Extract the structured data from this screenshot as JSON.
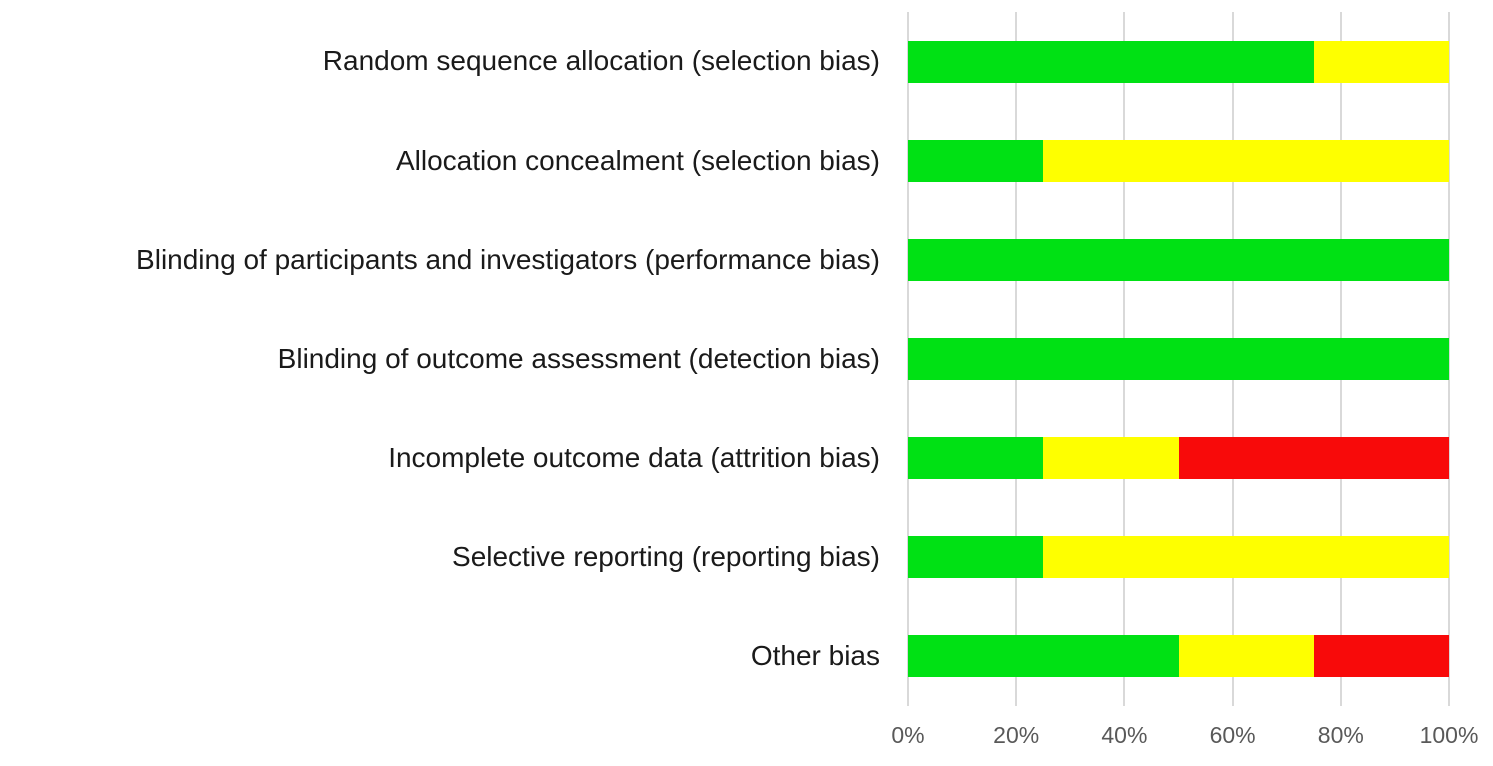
{
  "chart_data": {
    "type": "bar",
    "orientation": "horizontal",
    "stacked": true,
    "title": "",
    "xlabel": "",
    "ylabel": "",
    "xlim": [
      0,
      100
    ],
    "x_ticks": [
      "0%",
      "20%",
      "40%",
      "60%",
      "80%",
      "100%"
    ],
    "x_tick_values": [
      0,
      20,
      40,
      60,
      80,
      100
    ],
    "grid": "vertical-only",
    "legend": "none",
    "categories": [
      "Random sequence allocation (selection bias)",
      "Allocation concealment (selection bias)",
      "Blinding of participants and investigators (performance bias)",
      "Blinding of outcome assessment (detection bias)",
      "Incomplete outcome data (attrition bias)",
      "Selective reporting (reporting bias)",
      "Other bias"
    ],
    "series": [
      {
        "name": "green-segment",
        "color": "#00e114",
        "values": [
          75,
          25,
          100,
          100,
          25,
          25,
          50
        ]
      },
      {
        "name": "yellow-segment",
        "color": "#feff00",
        "values": [
          25,
          75,
          0,
          0,
          25,
          75,
          25
        ]
      },
      {
        "name": "red-segment",
        "color": "#f80a0a",
        "values": [
          0,
          0,
          0,
          0,
          50,
          0,
          25
        ]
      }
    ],
    "colors": {
      "gridline": "#d9d9d9",
      "axis_text": "#595959",
      "label_text": "#1a1a1a",
      "background": "#ffffff"
    }
  }
}
